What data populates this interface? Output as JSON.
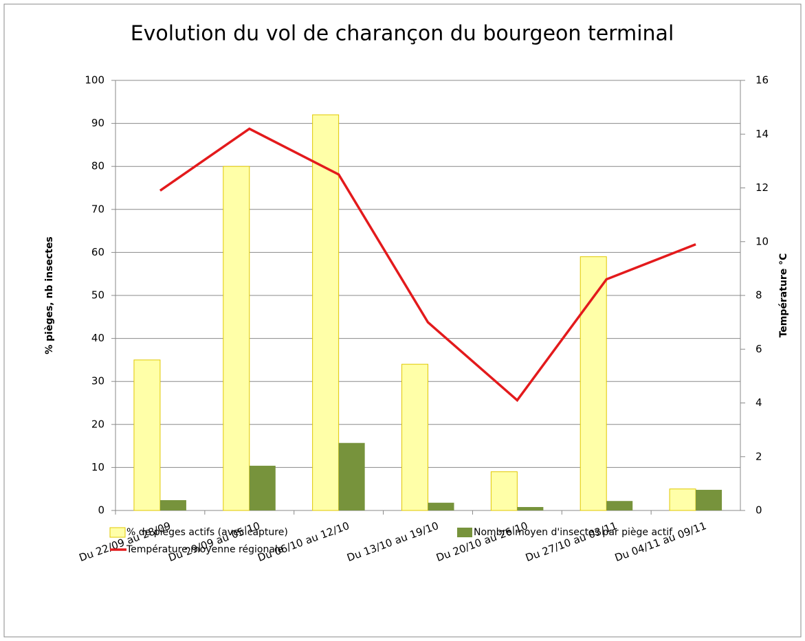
{
  "chart_data": {
    "type": "bar-line",
    "title": "Evolution du vol de charançon du bourgeon terminal",
    "y_label": "% pièges, nb insectes",
    "y2_label": "Température °C",
    "categories": [
      "Du 22/09 au 28/09",
      "Du 29/09 au 05/10",
      "Du 06/10 au 12/10",
      "Du 13/10 au 19/10",
      "Du 20/10 au 26/10",
      "Du 27/10 au 03/11",
      "Du 04/11 au 09/11"
    ],
    "series": [
      {
        "name": "% de pièges actifs (avec capture)",
        "type": "bar",
        "color": "#ffffa8",
        "stroke": "#e0c800",
        "values": [
          35,
          80,
          92,
          34,
          9,
          59,
          5
        ]
      },
      {
        "name": "Nombre moyen d'insectes par piège actif",
        "type": "bar",
        "color": "#77933c",
        "values": [
          2.4,
          10.4,
          15.7,
          1.8,
          0.8,
          2.2,
          4.8
        ]
      },
      {
        "name": "Température moyenne régionale",
        "type": "line",
        "axis": "y2",
        "color": "#e31a1c",
        "values": [
          11.9,
          14.2,
          12.5,
          7.0,
          4.1,
          8.6,
          9.9
        ]
      }
    ],
    "ylim": [
      0,
      100
    ],
    "yticks": [
      0,
      10,
      20,
      30,
      40,
      50,
      60,
      70,
      80,
      90,
      100
    ],
    "y2lim": [
      0,
      16
    ],
    "y2ticks": [
      0,
      2,
      4,
      6,
      8,
      10,
      12,
      14,
      16
    ],
    "grid": true,
    "legend": "bottom"
  }
}
